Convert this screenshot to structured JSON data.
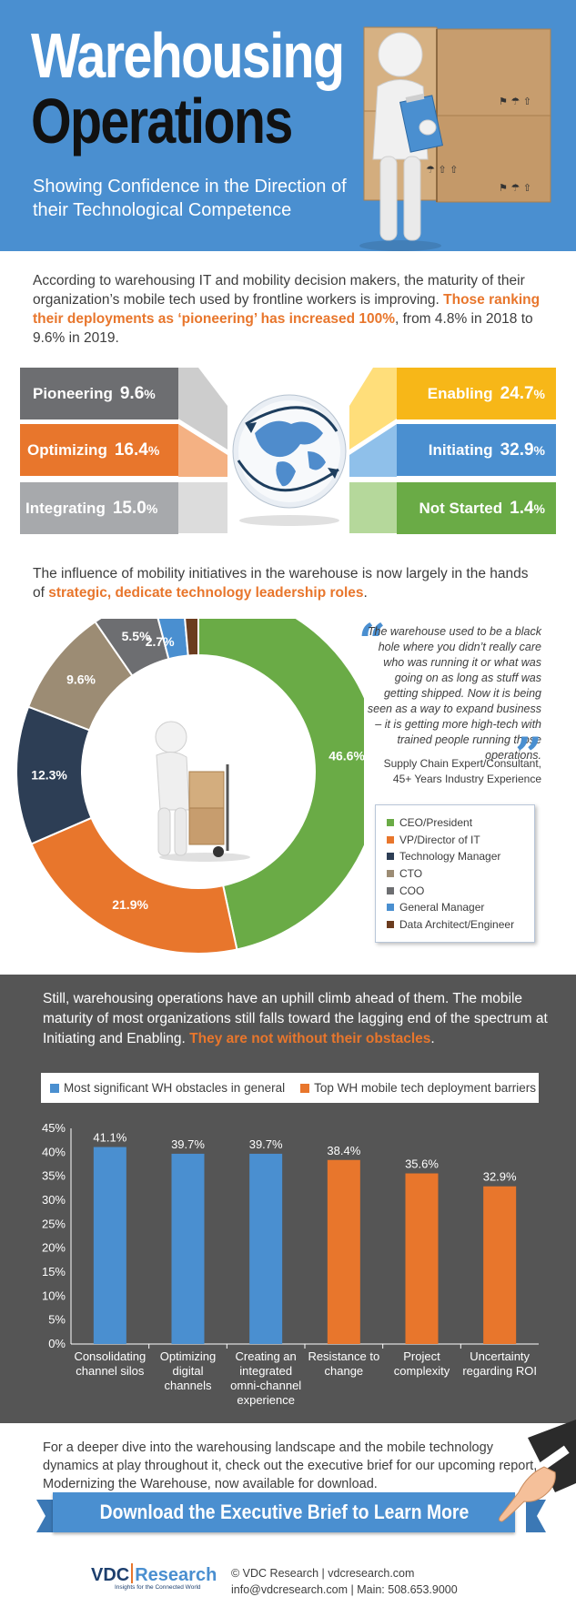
{
  "header": {
    "title_line1": "Warehousing",
    "title_line2": "Operations",
    "subtitle": "Showing Confidence in the Direction of their Technological Competence"
  },
  "intro": {
    "text_before": "According to warehousing IT and mobility decision makers, the maturity of their organization’s mobile tech used by frontline workers is improving. ",
    "highlight": "Those ranking their deployments as ‘pioneering’ has increased 100%",
    "text_after": ", from 4.8% in 2018 to 9.6% in 2019."
  },
  "maturity": {
    "left": [
      {
        "label": "Pioneering",
        "value": "9.6",
        "unit": "%",
        "color": "#6d6e71"
      },
      {
        "label": "Optimizing",
        "value": "16.4",
        "unit": "%",
        "color": "#e8762c"
      },
      {
        "label": "Integrating",
        "value": "15.0",
        "unit": "%",
        "color": "#a7a9ac"
      }
    ],
    "right": [
      {
        "label": "Enabling",
        "value": "24.7",
        "unit": "%",
        "color": "#f7b718"
      },
      {
        "label": "Initiating",
        "value": "32.9",
        "unit": "%",
        "color": "#4a8fd0"
      },
      {
        "label": "Not Started",
        "value": "1.4",
        "unit": "%",
        "color": "#6aab46"
      }
    ]
  },
  "influence": {
    "text_before": "The influence of mobility initiatives in the warehouse is now largely in the hands of ",
    "highlight": "strategic, dedicate technology leadership roles",
    "text_after": "."
  },
  "quote": {
    "text": "The warehouse used to be a black hole where you didn’t really care who was running it or what was going on as long as stuff was getting shipped. Now it is being seen as a way to expand business – it is getting more high-tech with trained people running those operations.",
    "attribution_line1": "Supply Chain Expert/Consultant,",
    "attribution_line2": "45+ Years Industry Experience"
  },
  "obstacles": {
    "text_before": "Still, warehousing operations have an uphill climb ahead of them. The mobile maturity of most organizations still falls toward the lagging end of the spectrum at Initiating and Enabling. ",
    "highlight": "They are not without their obstacles",
    "text_after": "."
  },
  "footer": {
    "text": "For a deeper dive into the warehousing landscape and the mobile technology dynamics at play throughout it, check out the executive brief for our upcoming report, Modernizing the Warehouse, now available for download.",
    "banner": "Download the Executive Brief to Learn More",
    "logo_main": "VDC",
    "logo_sub": "Research",
    "logo_tagline": "Insights for the Connected World",
    "contact_line1": "© VDC Research | vdcresearch.com",
    "contact_line2": "info@vdcresearch.com | Main: 508.653.9000"
  },
  "chart_data": [
    {
      "type": "pie",
      "subtype": "donut",
      "labels": [
        "CEO/President",
        "VP/Director of IT",
        "Technology Manager",
        "CTO",
        "COO",
        "General Manager",
        "Data Architect/Engineer"
      ],
      "values": [
        46.6,
        21.9,
        12.3,
        9.6,
        5.5,
        2.7,
        1.4
      ],
      "value_labels": [
        "46.6%",
        "21.9%",
        "12.3%",
        "9.6%",
        "5.5%",
        "2.7%",
        "1.4%"
      ],
      "colors": [
        "#6aab46",
        "#e8762c",
        "#2d3e55",
        "#9c8c74",
        "#6d6e71",
        "#4a8fd0",
        "#6b3c1f"
      ],
      "legend_position": "right"
    },
    {
      "type": "bar",
      "categories": [
        "Consolidating channel silos",
        "Optimizing digital channels",
        "Creating an integrated omni-channel experience",
        "Resistance to change",
        "Project complexity",
        "Uncertainty regarding ROI"
      ],
      "category_lines": [
        [
          "Consolidating",
          "channel silos"
        ],
        [
          "Optimizing",
          "digital",
          "channels"
        ],
        [
          "Creating an",
          "integrated",
          "omni-channel",
          "experience"
        ],
        [
          "Resistance to",
          "change"
        ],
        [
          "Project",
          "complexity"
        ],
        [
          "Uncertainty",
          "regarding ROI"
        ]
      ],
      "values": [
        41.1,
        39.7,
        39.7,
        38.4,
        35.6,
        32.9
      ],
      "value_labels": [
        "41.1%",
        "39.7%",
        "39.7%",
        "38.4%",
        "35.6%",
        "32.9%"
      ],
      "bar_series": [
        0,
        0,
        0,
        1,
        1,
        1
      ],
      "series": [
        {
          "name": "Most significant WH obstacles in general",
          "color": "#4a8fd0"
        },
        {
          "name": "Top WH mobile tech deployment barriers",
          "color": "#e8762c"
        }
      ],
      "ylim": [
        0,
        45
      ],
      "yticks": [
        "0%",
        "5%",
        "10%",
        "15%",
        "20%",
        "25%",
        "30%",
        "35%",
        "40%",
        "45%"
      ],
      "legend_position": "top"
    }
  ]
}
